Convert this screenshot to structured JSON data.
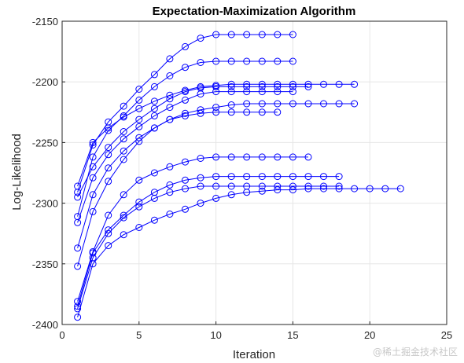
{
  "chart_data": {
    "type": "line",
    "title": "Expectation-Maximization Algorithm",
    "xlabel": "Iteration",
    "ylabel": "Log-Likelihood",
    "xlim": [
      0,
      25
    ],
    "ylim": [
      -2400,
      -2150
    ],
    "xticks": [
      0,
      5,
      10,
      15,
      20,
      25
    ],
    "yticks": [
      -2150,
      -2200,
      -2250,
      -2300,
      -2350,
      -2400
    ],
    "grid": true,
    "marker": "circle-open",
    "line_color": "#0000ff",
    "series": [
      {
        "values": [
          -2291,
          -2252,
          -2233,
          -2220,
          -2206,
          -2194,
          -2181,
          -2171,
          -2164,
          -2161,
          -2161,
          -2161,
          -2161,
          -2161,
          -2161
        ]
      },
      {
        "values": [
          -2311,
          -2262,
          -2240,
          -2228,
          -2215,
          -2204,
          -2195,
          -2188,
          -2184,
          -2183,
          -2183,
          -2183,
          -2183,
          -2183,
          -2183
        ]
      },
      {
        "values": [
          -2286,
          -2250,
          -2238,
          -2229,
          -2222,
          -2216,
          -2211,
          -2207,
          -2204,
          -2203,
          -2202,
          -2202,
          -2202,
          -2202,
          -2202,
          -2202,
          -2202,
          -2202,
          -2202
        ]
      },
      {
        "values": [
          -2295,
          -2270,
          -2254,
          -2241,
          -2231,
          -2222,
          -2214,
          -2208,
          -2205,
          -2204,
          -2204,
          -2204,
          -2204,
          -2204,
          -2204,
          -2204
        ]
      },
      {
        "values": [
          -2316,
          -2279,
          -2260,
          -2247,
          -2237,
          -2228,
          -2221,
          -2215,
          -2210,
          -2208,
          -2208,
          -2208,
          -2208,
          -2208,
          -2208
        ]
      },
      {
        "values": [
          -2337,
          -2293,
          -2271,
          -2257,
          -2246,
          -2238,
          -2231,
          -2226,
          -2223,
          -2221,
          -2219,
          -2218,
          -2218,
          -2218,
          -2218,
          -2218,
          -2218,
          -2218,
          -2218
        ]
      },
      {
        "values": [
          -2352,
          -2307,
          -2282,
          -2264,
          -2249,
          -2238,
          -2231,
          -2228,
          -2226,
          -2225,
          -2225,
          -2225,
          -2225,
          -2225
        ]
      },
      {
        "values": [
          -2381,
          -2340,
          -2310,
          -2293,
          -2281,
          -2275,
          -2270,
          -2266,
          -2263,
          -2262,
          -2262,
          -2262,
          -2262,
          -2262,
          -2262,
          -2262
        ]
      },
      {
        "values": [
          -2385,
          -2341,
          -2322,
          -2310,
          -2299,
          -2291,
          -2285,
          -2281,
          -2279,
          -2278,
          -2278,
          -2278,
          -2278,
          -2278,
          -2278,
          -2278,
          -2278,
          -2278
        ]
      },
      {
        "values": [
          -2387,
          -2345,
          -2325,
          -2312,
          -2303,
          -2296,
          -2291,
          -2288,
          -2286,
          -2286,
          -2286,
          -2286,
          -2286,
          -2286,
          -2286,
          -2286,
          -2286,
          -2286
        ]
      },
      {
        "values": [
          -2394,
          -2350,
          -2335,
          -2326,
          -2320,
          -2314,
          -2309,
          -2305,
          -2300,
          -2296,
          -2293,
          -2291,
          -2290,
          -2289,
          -2289,
          -2288,
          -2288,
          -2288,
          -2288,
          -2288,
          -2288,
          -2288
        ]
      }
    ]
  },
  "watermark": "@稀土掘金技术社区"
}
